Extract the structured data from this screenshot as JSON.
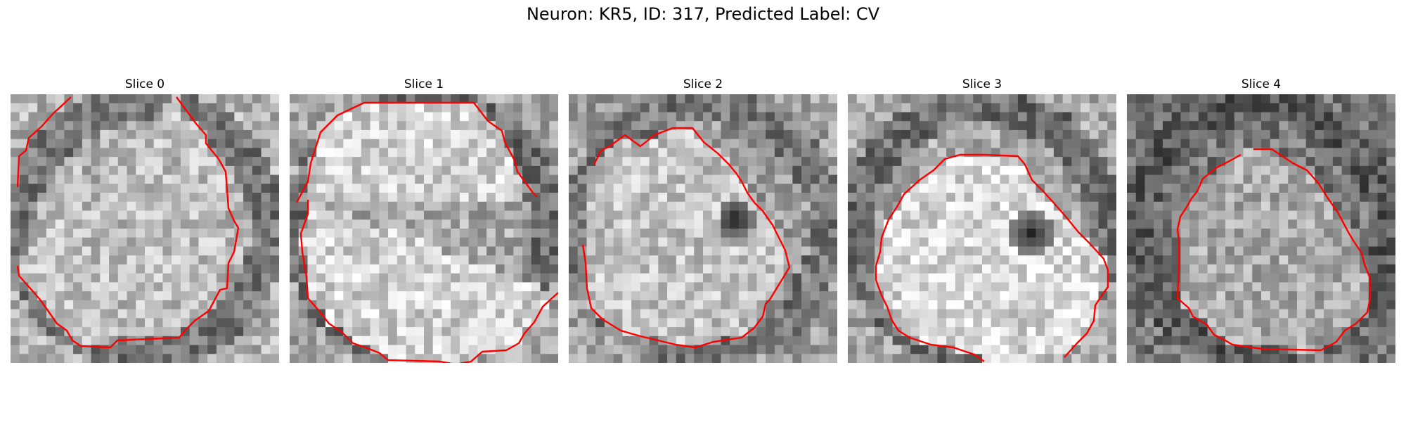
{
  "figure": {
    "title": "Neuron: KR5, ID: 317, Predicted Label: CV"
  },
  "panels": [
    {
      "title": "Slice 0",
      "seed": 11,
      "base": 180,
      "inner": 190,
      "outer": 120,
      "dark_spot": false
    },
    {
      "title": "Slice 1",
      "seed": 23,
      "base": 170,
      "inner": 210,
      "outer": 110,
      "dark_spot": false
    },
    {
      "title": "Slice 2",
      "seed": 37,
      "base": 160,
      "inner": 195,
      "outer": 120,
      "dark_spot": true
    },
    {
      "title": "Slice 3",
      "seed": 41,
      "base": 170,
      "inner": 215,
      "outer": 110,
      "dark_spot": true
    },
    {
      "title": "Slice 4",
      "seed": 53,
      "base": 120,
      "inner": 170,
      "outer": 90,
      "dark_spot": false
    }
  ],
  "contour_color": "#ff0000"
}
